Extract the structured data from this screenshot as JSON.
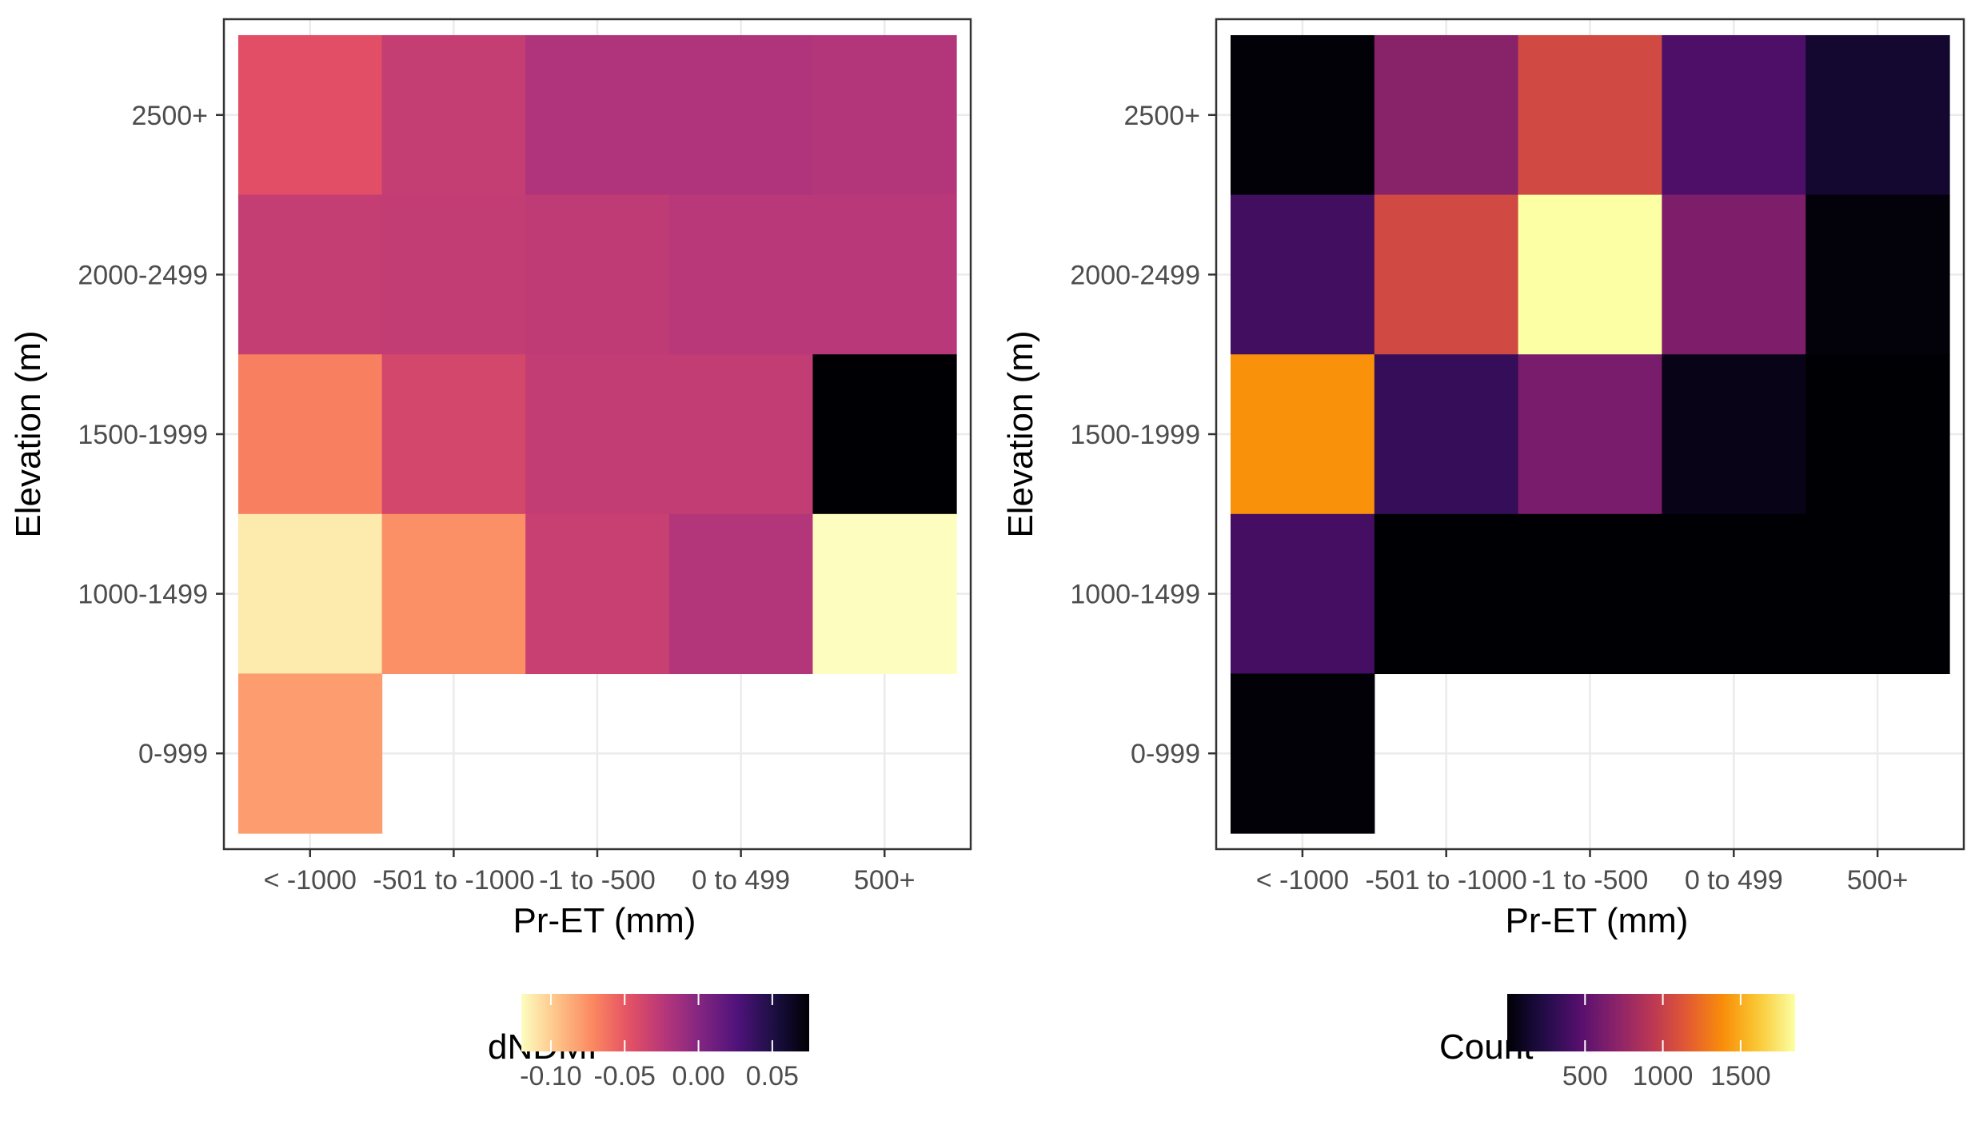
{
  "chart_data": [
    {
      "type": "heatmap",
      "title": "",
      "xlabel": "Pr-ET (mm)",
      "ylabel": "Elevation (m)",
      "x_categories": [
        "< -1000",
        "-501 to -1000",
        "-1 to -500",
        "0 to 499",
        "500+"
      ],
      "y_categories": [
        "0-999",
        "1000-1499",
        "1500-1999",
        "2000-2499",
        "2500+"
      ],
      "grid": true,
      "legend": {
        "title": "dNDMI",
        "position": "bottom",
        "range": [
          -0.12,
          0.075
        ],
        "ticks": [
          -0.1,
          -0.05,
          0.0,
          0.05
        ],
        "tick_labels": [
          "-0.10",
          "-0.05",
          "0.00",
          "0.05"
        ],
        "palette": "magma-reversed"
      },
      "cells": [
        {
          "x": "< -1000",
          "y": "2500+",
          "value": -0.045
        },
        {
          "x": "-501 to -1000",
          "y": "2500+",
          "value": -0.03
        },
        {
          "x": "-1 to -500",
          "y": "2500+",
          "value": -0.02
        },
        {
          "x": "0 to 499",
          "y": "2500+",
          "value": -0.02
        },
        {
          "x": "500+",
          "y": "2500+",
          "value": -0.022
        },
        {
          "x": "< -1000",
          "y": "2000-2499",
          "value": -0.03
        },
        {
          "x": "-501 to -1000",
          "y": "2000-2499",
          "value": -0.029
        },
        {
          "x": "-1 to -500",
          "y": "2000-2499",
          "value": -0.027
        },
        {
          "x": "0 to 499",
          "y": "2000-2499",
          "value": -0.024
        },
        {
          "x": "500+",
          "y": "2000-2499",
          "value": -0.024
        },
        {
          "x": "< -1000",
          "y": "1500-1999",
          "value": -0.068
        },
        {
          "x": "-501 to -1000",
          "y": "1500-1999",
          "value": -0.038
        },
        {
          "x": "-1 to -500",
          "y": "1500-1999",
          "value": -0.029
        },
        {
          "x": "0 to 499",
          "y": "1500-1999",
          "value": -0.029
        },
        {
          "x": "500+",
          "y": "1500-1999",
          "value": 0.075
        },
        {
          "x": "< -1000",
          "y": "1000-1499",
          "value": -0.112
        },
        {
          "x": "-501 to -1000",
          "y": "1000-1499",
          "value": -0.075
        },
        {
          "x": "-1 to -500",
          "y": "1000-1499",
          "value": -0.032
        },
        {
          "x": "0 to 499",
          "y": "1000-1499",
          "value": -0.022
        },
        {
          "x": "500+",
          "y": "1000-1499",
          "value": -0.12
        },
        {
          "x": "< -1000",
          "y": "0-999",
          "value": -0.08
        }
      ]
    },
    {
      "type": "heatmap",
      "title": "",
      "xlabel": "Pr-ET (mm)",
      "ylabel": "Elevation (m)",
      "x_categories": [
        "< -1000",
        "-501 to -1000",
        "-1 to -500",
        "0 to 499",
        "500+"
      ],
      "y_categories": [
        "0-999",
        "1000-1499",
        "1500-1999",
        "2000-2499",
        "2500+"
      ],
      "grid": true,
      "legend": {
        "title": "Count",
        "position": "bottom",
        "range": [
          0,
          1850
        ],
        "ticks": [
          500,
          1000,
          1500
        ],
        "tick_labels": [
          "500",
          "1000",
          "1500"
        ],
        "palette": "inferno"
      },
      "cells": [
        {
          "x": "< -1000",
          "y": "2500+",
          "value": 10
        },
        {
          "x": "-501 to -1000",
          "y": "2500+",
          "value": 700
        },
        {
          "x": "-1 to -500",
          "y": "2500+",
          "value": 1050
        },
        {
          "x": "0 to 499",
          "y": "2500+",
          "value": 430
        },
        {
          "x": "500+",
          "y": "2500+",
          "value": 150
        },
        {
          "x": "< -1000",
          "y": "2000-2499",
          "value": 380
        },
        {
          "x": "-501 to -1000",
          "y": "2000-2499",
          "value": 1050
        },
        {
          "x": "-1 to -500",
          "y": "2000-2499",
          "value": 1850
        },
        {
          "x": "0 to 499",
          "y": "2000-2499",
          "value": 650
        },
        {
          "x": "500+",
          "y": "2000-2499",
          "value": 20
        },
        {
          "x": "< -1000",
          "y": "1500-1999",
          "value": 1400
        },
        {
          "x": "-501 to -1000",
          "y": "1500-1999",
          "value": 330
        },
        {
          "x": "-1 to -500",
          "y": "1500-1999",
          "value": 620
        },
        {
          "x": "0 to 499",
          "y": "1500-1999",
          "value": 60
        },
        {
          "x": "500+",
          "y": "1500-1999",
          "value": 0
        },
        {
          "x": "< -1000",
          "y": "1000-1499",
          "value": 400
        },
        {
          "x": "-501 to -1000",
          "y": "1000-1499",
          "value": 0
        },
        {
          "x": "-1 to -500",
          "y": "1000-1499",
          "value": 0
        },
        {
          "x": "0 to 499",
          "y": "1000-1499",
          "value": 0
        },
        {
          "x": "500+",
          "y": "1000-1499",
          "value": 0
        },
        {
          "x": "< -1000",
          "y": "0-999",
          "value": 10
        }
      ]
    }
  ]
}
